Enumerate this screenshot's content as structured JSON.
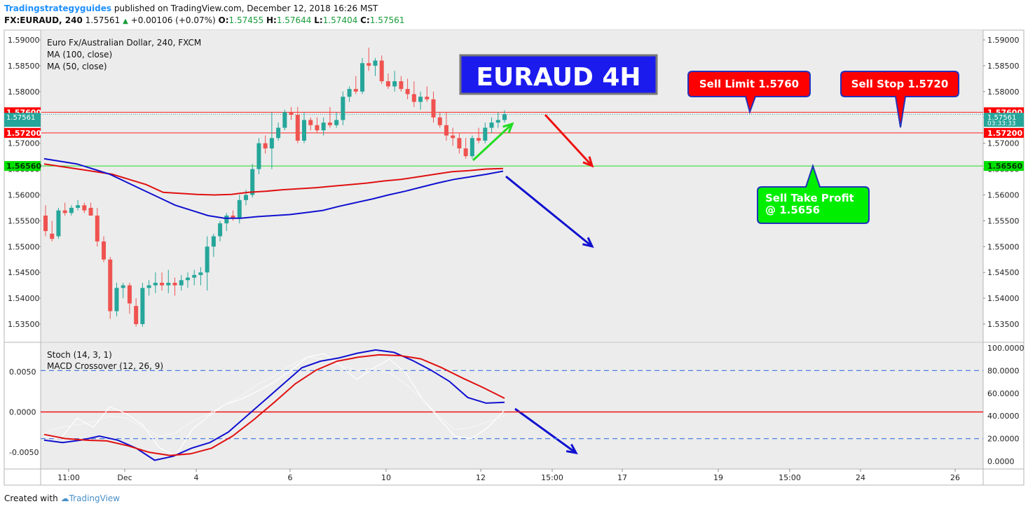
{
  "header": {
    "author": "Tradingstrategyguides",
    "published": "published on TradingView.com, December 12, 2018 16:26 MST",
    "symbol": "FX:EURAUD, 240",
    "price": "1.57561",
    "change": "+0.00106 (+0.07%)",
    "o_label": "O:",
    "o": "1.57455",
    "h_label": "H:",
    "h": "1.57644",
    "l_label": "L:",
    "l": "1.57404",
    "c_label": "C:",
    "c": "1.57561"
  },
  "footer": {
    "created_with": "Created with",
    "brand": "TradingView"
  },
  "colors": {
    "up": "#26a69a",
    "down": "#ef5350",
    "ma50": "#1010d0",
    "ma100": "#e01010",
    "bg": "#ececec",
    "callout_red": "#ff0000",
    "callout_green": "#00e000",
    "title_box": "#1b1bee"
  },
  "chart_data": [
    {
      "type": "candlestick",
      "title": "Euro Fx/Australian Dollar, 240, FXCM",
      "legend": [
        "MA (100, close)",
        "MA (50, close)"
      ],
      "ylim": [
        1.5315,
        1.5915
      ],
      "y_ticks": [
        "1.59000",
        "1.58500",
        "1.58000",
        "1.57500",
        "1.57000",
        "1.56500",
        "1.56000",
        "1.55500",
        "1.55000",
        "1.54500",
        "1.54000",
        "1.53500"
      ],
      "x_ticks": [
        "11:00",
        "Dec",
        "4",
        "6",
        "10",
        "12",
        "15:00",
        "17",
        "19",
        "15:00",
        "24",
        "26"
      ],
      "candles": [
        [
          1.556,
          1.558,
          1.552,
          1.553
        ],
        [
          1.5525,
          1.555,
          1.551,
          1.5515
        ],
        [
          1.552,
          1.5575,
          1.5515,
          1.557
        ],
        [
          1.557,
          1.5585,
          1.556,
          1.5565
        ],
        [
          1.5565,
          1.558,
          1.556,
          1.5575
        ],
        [
          1.5575,
          1.559,
          1.557,
          1.558
        ],
        [
          1.558,
          1.5585,
          1.5565,
          1.557
        ],
        [
          1.5575,
          1.5585,
          1.556,
          1.556
        ],
        [
          1.556,
          1.5575,
          1.55,
          1.551
        ],
        [
          1.551,
          1.552,
          1.547,
          1.5475
        ],
        [
          1.5475,
          1.548,
          1.536,
          1.5375
        ],
        [
          1.5375,
          1.543,
          1.5365,
          1.542
        ],
        [
          1.542,
          1.543,
          1.54,
          1.5425
        ],
        [
          1.5425,
          1.543,
          1.537,
          1.539
        ],
        [
          1.5385,
          1.54,
          1.5345,
          1.535
        ],
        [
          1.535,
          1.543,
          1.5345,
          1.542
        ],
        [
          1.542,
          1.5435,
          1.5405,
          1.5425
        ],
        [
          1.5425,
          1.545,
          1.541,
          1.543
        ],
        [
          1.543,
          1.545,
          1.5415,
          1.5425
        ],
        [
          1.5425,
          1.5455,
          1.541,
          1.543
        ],
        [
          1.543,
          1.544,
          1.5405,
          1.5425
        ],
        [
          1.5425,
          1.5445,
          1.5415,
          1.5435
        ],
        [
          1.5435,
          1.545,
          1.542,
          1.544
        ],
        [
          1.544,
          1.5455,
          1.5425,
          1.5445
        ],
        [
          1.5445,
          1.546,
          1.5425,
          1.545
        ],
        [
          1.545,
          1.552,
          1.5415,
          1.55
        ],
        [
          1.55,
          1.5525,
          1.548,
          1.552
        ],
        [
          1.552,
          1.555,
          1.551,
          1.5545
        ],
        [
          1.5545,
          1.5565,
          1.553,
          1.556
        ],
        [
          1.556,
          1.557,
          1.555,
          1.5555
        ],
        [
          1.5555,
          1.56,
          1.5545,
          1.559
        ],
        [
          1.559,
          1.561,
          1.558,
          1.56
        ],
        [
          1.56,
          1.566,
          1.5595,
          1.565
        ],
        [
          1.565,
          1.571,
          1.564,
          1.57
        ],
        [
          1.57,
          1.5715,
          1.568,
          1.569
        ],
        [
          1.569,
          1.576,
          1.565,
          1.571
        ],
        [
          1.571,
          1.574,
          1.5705,
          1.573
        ],
        [
          1.573,
          1.5765,
          1.5725,
          1.576
        ],
        [
          1.576,
          1.577,
          1.5745,
          1.5755
        ],
        [
          1.5755,
          1.577,
          1.57,
          1.5705
        ],
        [
          1.5705,
          1.576,
          1.57,
          1.5745
        ],
        [
          1.5745,
          1.575,
          1.5725,
          1.5735
        ],
        [
          1.5735,
          1.575,
          1.572,
          1.5725
        ],
        [
          1.5725,
          1.575,
          1.5715,
          1.574
        ],
        [
          1.574,
          1.577,
          1.573,
          1.5735
        ],
        [
          1.5735,
          1.576,
          1.573,
          1.5745
        ],
        [
          1.5745,
          1.58,
          1.5735,
          1.579
        ],
        [
          1.579,
          1.581,
          1.578,
          1.5805
        ],
        [
          1.5805,
          1.583,
          1.5795,
          1.58
        ],
        [
          1.58,
          1.5865,
          1.5795,
          1.5855
        ],
        [
          1.5855,
          1.5885,
          1.584,
          1.585
        ],
        [
          1.585,
          1.5865,
          1.583,
          1.586
        ],
        [
          1.586,
          1.587,
          1.5815,
          1.582
        ],
        [
          1.582,
          1.5835,
          1.5805,
          1.581
        ],
        [
          1.581,
          1.584,
          1.58,
          1.582
        ],
        [
          1.582,
          1.583,
          1.58,
          1.5805
        ],
        [
          1.5805,
          1.5825,
          1.5785,
          1.5795
        ],
        [
          1.5795,
          1.582,
          1.577,
          1.578
        ],
        [
          1.578,
          1.58,
          1.5765,
          1.579
        ],
        [
          1.579,
          1.581,
          1.578,
          1.5785
        ],
        [
          1.5785,
          1.58,
          1.574,
          1.575
        ],
        [
          1.575,
          1.576,
          1.573,
          1.5735
        ],
        [
          1.5735,
          1.576,
          1.5705,
          1.5715
        ],
        [
          1.5715,
          1.573,
          1.5695,
          1.571
        ],
        [
          1.571,
          1.572,
          1.568,
          1.569
        ],
        [
          1.569,
          1.571,
          1.567,
          1.5675
        ],
        [
          1.5675,
          1.5715,
          1.567,
          1.571
        ],
        [
          1.571,
          1.573,
          1.57,
          1.5705
        ],
        [
          1.5705,
          1.574,
          1.57,
          1.573
        ],
        [
          1.573,
          1.575,
          1.572,
          1.574
        ],
        [
          1.574,
          1.576,
          1.573,
          1.5745
        ],
        [
          1.5745,
          1.5764,
          1.574,
          1.5756
        ]
      ],
      "ma100": [
        1.566,
        1.5655,
        1.565,
        1.5645,
        1.564,
        1.563,
        1.562,
        1.5605,
        1.5603,
        1.5601,
        1.56,
        1.5601,
        1.5605,
        1.5607,
        1.561,
        1.5612,
        1.5614,
        1.5617,
        1.562,
        1.5623,
        1.5627,
        1.563,
        1.5635,
        1.564,
        1.5645,
        1.5647,
        1.565,
        1.5651
      ],
      "ma50": [
        1.567,
        1.5665,
        1.566,
        1.565,
        1.564,
        1.5625,
        1.561,
        1.5595,
        1.558,
        1.557,
        1.556,
        1.5555,
        1.5555,
        1.5558,
        1.556,
        1.5562,
        1.5566,
        1.557,
        1.5578,
        1.5585,
        1.5592,
        1.56,
        1.5607,
        1.5615,
        1.5623,
        1.563,
        1.5635,
        1.564,
        1.5646
      ],
      "levels": [
        {
          "label": "1.57600",
          "value": 1.576
        },
        {
          "label": "1.57200",
          "value": 1.572
        },
        {
          "label": "1.56560",
          "value": 1.5656
        }
      ],
      "last_price_label": "1.57561",
      "last_time_label": "03:33:33",
      "annotations": {
        "title_box": "EURAUD 4H",
        "sell_limit": "Sell Limit 1.5760",
        "sell_stop": "Sell Stop 1.5720",
        "take_profit_1": "Sell Take Profit",
        "take_profit_2": "@ 1.5656"
      }
    },
    {
      "type": "line",
      "legend": [
        "Stoch (14, 3, 1)",
        "MACD Crossover (12, 26, 9)"
      ],
      "left_ticks": [
        "0.0050",
        "0.0000",
        "-0.0050"
      ],
      "right_ticks": [
        "100.0000",
        "80.0000",
        "60.0000",
        "40.0000",
        "20.0000",
        "0.0000"
      ],
      "left_ylim": [
        -0.0066,
        0.0083
      ],
      "dashed_levels": [
        80,
        20
      ],
      "zero_line": 0,
      "stoch_k": [
        22,
        20,
        38,
        30,
        48,
        42,
        32,
        12,
        5,
        28,
        40,
        50,
        55,
        62,
        70,
        80,
        92,
        95,
        85,
        72,
        82,
        90,
        78,
        55,
        38,
        22,
        20,
        30,
        45
      ],
      "stoch_d": [
        25,
        30,
        32,
        35,
        40,
        38,
        30,
        22,
        25,
        35,
        42,
        50,
        58,
        68,
        75,
        85,
        92,
        90,
        85,
        80,
        82,
        78,
        68,
        55,
        40,
        28,
        30,
        35,
        40
      ],
      "macd": [
        -0.0035,
        -0.0038,
        -0.0035,
        -0.003,
        -0.0035,
        -0.0045,
        -0.006,
        -0.0055,
        -0.0045,
        -0.0038,
        -0.0025,
        -0.0005,
        0.0015,
        0.0035,
        0.0055,
        0.0063,
        0.0067,
        0.0073,
        0.0077,
        0.0074,
        0.0064,
        0.0052,
        0.0038,
        0.0018,
        0.0011,
        0.0012
      ],
      "signal": [
        -0.0028,
        -0.0033,
        -0.0035,
        -0.0036,
        -0.0042,
        -0.005,
        -0.0054,
        -0.0052,
        -0.0045,
        -0.003,
        -0.001,
        0.0012,
        0.0035,
        0.0052,
        0.0063,
        0.0068,
        0.0071,
        0.007,
        0.0066,
        0.0055,
        0.0042,
        0.003,
        0.0017
      ]
    }
  ]
}
